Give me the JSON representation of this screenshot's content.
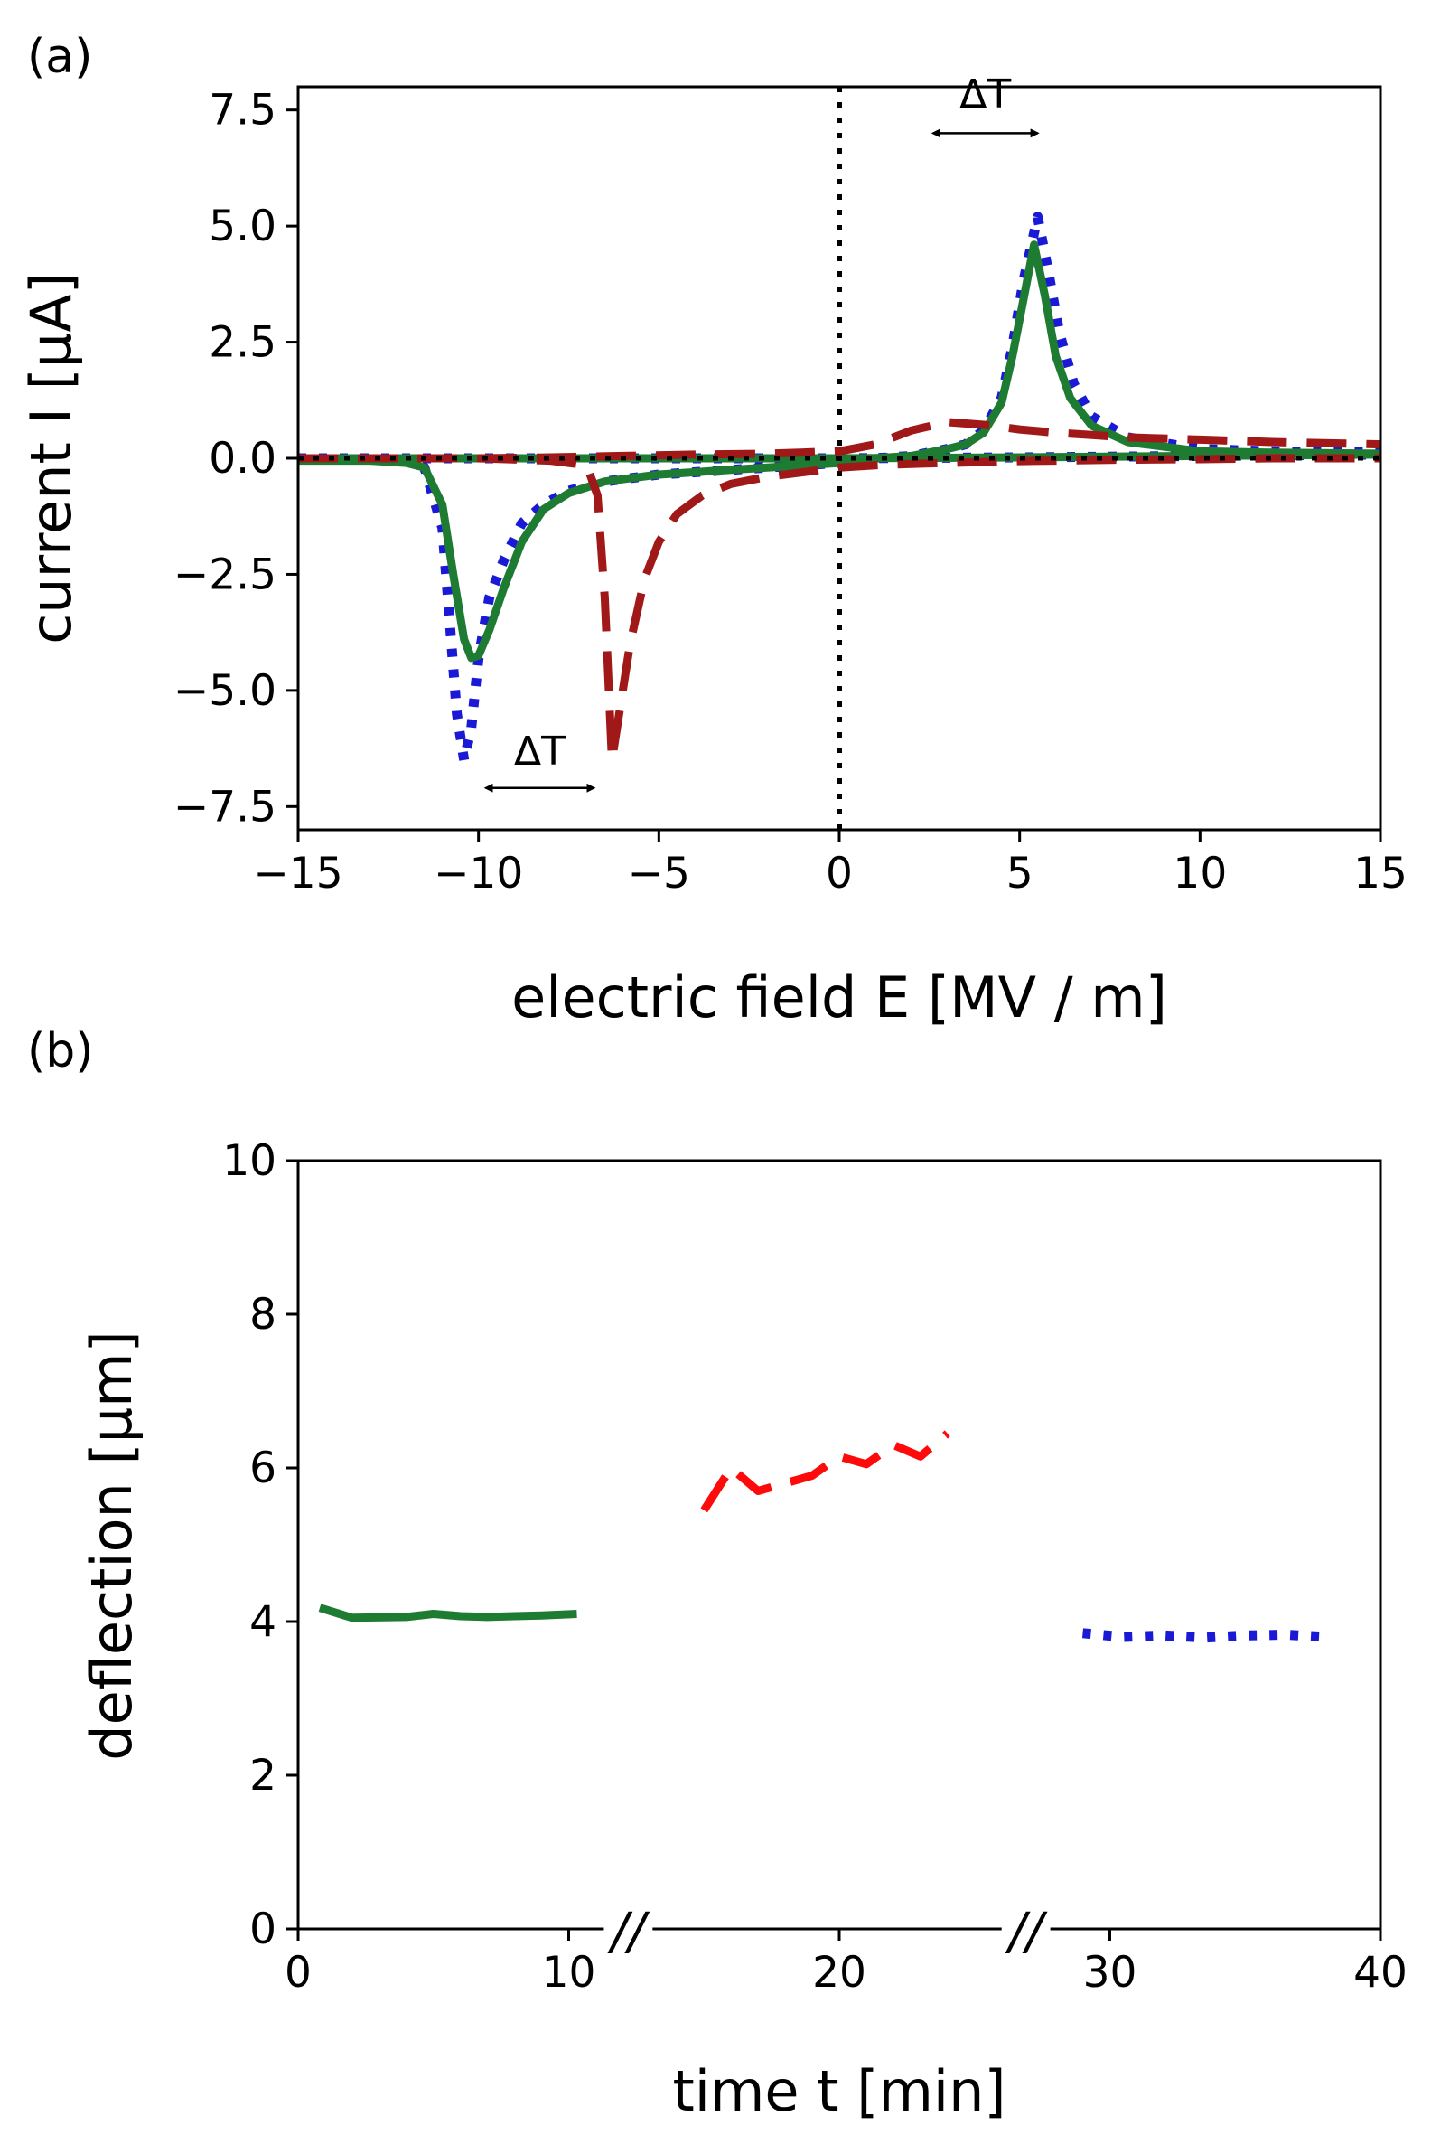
{
  "chart_data": [
    {
      "panel": "(a)",
      "type": "line",
      "xlabel": "electric field E [MV / m]",
      "ylabel": "current I [μA]",
      "xlim": [
        -15,
        15
      ],
      "ylim": [
        -8,
        8
      ],
      "xticks": [
        -15,
        -10,
        -5,
        0,
        5,
        10,
        15
      ],
      "xtick_labels": [
        "−15",
        "−10",
        "−5",
        "0",
        "5",
        "10",
        "15"
      ],
      "yticks": [
        7.5,
        5.0,
        2.5,
        0.0,
        -2.5,
        -5.0,
        -7.5
      ],
      "ytick_labels": [
        "7.5",
        "5.0",
        "2.5",
        "0.0",
        "−2.5",
        "−5.0",
        "−7.5"
      ],
      "series": [
        {
          "name": "solid green",
          "color": "#1e7b32",
          "style": "solid",
          "branches": [
            {
              "x": [
                -15,
                -13,
                -12,
                -11.5,
                -11.0,
                -10.7,
                -10.4,
                -10.2,
                -10.0,
                -9.7,
                -9.3,
                -8.8,
                -8.2,
                -7.5,
                -6.5,
                -5,
                -3,
                -1,
                0,
                1,
                2,
                3,
                3.5,
                4.0,
                4.5,
                4.8,
                5.1,
                5.4,
                5.7,
                6.0,
                6.4,
                7.0,
                8.0,
                10,
                12,
                15
              ],
              "y": [
                -0.05,
                -0.05,
                -0.1,
                -0.2,
                -1.0,
                -2.5,
                -3.9,
                -4.3,
                -4.25,
                -3.7,
                -2.8,
                -1.8,
                -1.1,
                -0.75,
                -0.5,
                -0.35,
                -0.25,
                -0.15,
                -0.1,
                0.0,
                0.05,
                0.2,
                0.3,
                0.55,
                1.2,
                2.2,
                3.4,
                4.6,
                3.5,
                2.2,
                1.3,
                0.7,
                0.35,
                0.15,
                0.12,
                0.1
              ]
            },
            {
              "x": [
                -15,
                -10,
                -5,
                0,
                5,
                10,
                15
              ],
              "y": [
                0.0,
                0.0,
                0.0,
                0.0,
                0.02,
                0.05,
                0.08
              ]
            }
          ]
        },
        {
          "name": "dotted blue",
          "color": "#1a1ad6",
          "style": "dotted",
          "branches": [
            {
              "x": [
                -15,
                -13,
                -12,
                -11.5,
                -11.0,
                -10.8,
                -10.6,
                -10.4,
                -10.2,
                -10.0,
                -9.7,
                -9.3,
                -8.8,
                -8.2,
                -7.5,
                -6.5,
                -5,
                -3,
                -1,
                0,
                1,
                2,
                3,
                3.5,
                4.0,
                4.5,
                4.8,
                5.1,
                5.5,
                5.8,
                6.1,
                6.5,
                7.0,
                8.0,
                10,
                12,
                15
              ],
              "y": [
                0.0,
                0.0,
                -0.05,
                -0.2,
                -1.5,
                -3.5,
                -5.5,
                -6.5,
                -5.8,
                -4.3,
                -3.0,
                -2.2,
                -1.4,
                -1.0,
                -0.7,
                -0.5,
                -0.35,
                -0.25,
                -0.15,
                -0.1,
                0.0,
                0.05,
                0.2,
                0.3,
                0.6,
                1.3,
                2.4,
                3.8,
                5.2,
                4.0,
                2.7,
                1.6,
                0.9,
                0.45,
                0.2,
                0.15,
                0.12
              ]
            },
            {
              "x": [
                -15,
                -10,
                -5,
                0,
                5,
                10,
                15
              ],
              "y": [
                0.0,
                0.0,
                0.0,
                0.0,
                0.02,
                0.05,
                0.08
              ]
            }
          ]
        },
        {
          "name": "dashed dark red",
          "color": "#a01818",
          "style": "dashed",
          "branches": [
            {
              "x": [
                -15,
                -10,
                -8,
                -7.0,
                -6.7,
                -6.5,
                -6.3,
                -6.1,
                -5.8,
                -5.4,
                -5.0,
                -4.5,
                -3.8,
                -3.0,
                -2,
                -1,
                0,
                1,
                2,
                3,
                4,
                5,
                6,
                8,
                10,
                12,
                15
              ],
              "y": [
                0.0,
                0.0,
                -0.05,
                -0.15,
                -0.8,
                -3.0,
                -6.5,
                -5.5,
                -4.0,
                -2.6,
                -1.8,
                -1.2,
                -0.8,
                -0.55,
                -0.4,
                -0.3,
                -0.2,
                -0.15,
                -0.12,
                -0.1,
                -0.08,
                -0.06,
                -0.05,
                -0.03,
                -0.02,
                0.0,
                0.0
              ]
            },
            {
              "x": [
                -15,
                -10,
                -8,
                -6,
                -4,
                -2,
                0,
                1,
                2,
                3,
                4,
                5,
                6,
                7,
                8,
                10,
                12,
                15
              ],
              "y": [
                0.0,
                0.0,
                0.02,
                0.05,
                0.08,
                0.1,
                0.15,
                0.3,
                0.6,
                0.78,
                0.72,
                0.62,
                0.55,
                0.5,
                0.45,
                0.4,
                0.35,
                0.3
              ]
            }
          ]
        }
      ],
      "reference_lines": {
        "vertical_x": 0,
        "horizontal_y": 0,
        "style": "dotted",
        "color": "#000000"
      },
      "annotations": [
        {
          "text": "ΔT",
          "arrow_x": [
            2.6,
            5.5
          ],
          "arrow_y": 7.0,
          "label_y": 7.55
        },
        {
          "text": "ΔT",
          "arrow_x": [
            -9.8,
            -6.8
          ],
          "arrow_y": -7.1,
          "label_y": -6.6
        }
      ]
    },
    {
      "panel": "(b)",
      "type": "line",
      "xlabel": "time t [min]",
      "ylabel": "deflection [μm]",
      "xlim": [
        0,
        40
      ],
      "ylim": [
        0,
        10
      ],
      "xticks": [
        0,
        10,
        20,
        30,
        40
      ],
      "xtick_labels": [
        "0",
        "10",
        "20",
        "30",
        "40"
      ],
      "yticks": [
        0,
        2,
        4,
        6,
        8,
        10
      ],
      "ytick_labels": [
        "0",
        "2",
        "4",
        "6",
        "8",
        "10"
      ],
      "axis_break_marks": [
        "//",
        "//"
      ],
      "axis_break_x": [
        12.2,
        26.9
      ],
      "series": [
        {
          "name": "solid green",
          "color": "#1e7b32",
          "style": "solid",
          "x": [
            0.8,
            2,
            4,
            5,
            6,
            7,
            8,
            9,
            10.3
          ],
          "y": [
            4.18,
            4.05,
            4.06,
            4.1,
            4.07,
            4.06,
            4.07,
            4.08,
            4.1
          ]
        },
        {
          "name": "dashed red",
          "color": "#ff0a0a",
          "style": "dashed",
          "x": [
            15,
            16,
            17,
            18,
            19,
            20,
            21,
            22,
            23,
            24
          ],
          "y": [
            5.45,
            6.0,
            5.7,
            5.8,
            5.9,
            6.15,
            6.05,
            6.3,
            6.15,
            6.45
          ]
        },
        {
          "name": "dotted blue",
          "color": "#1a1ad6",
          "style": "dotted",
          "x": [
            29,
            30.5,
            32,
            33.5,
            35,
            36.5,
            38
          ],
          "y": [
            3.85,
            3.8,
            3.82,
            3.79,
            3.82,
            3.83,
            3.8
          ]
        }
      ]
    }
  ]
}
